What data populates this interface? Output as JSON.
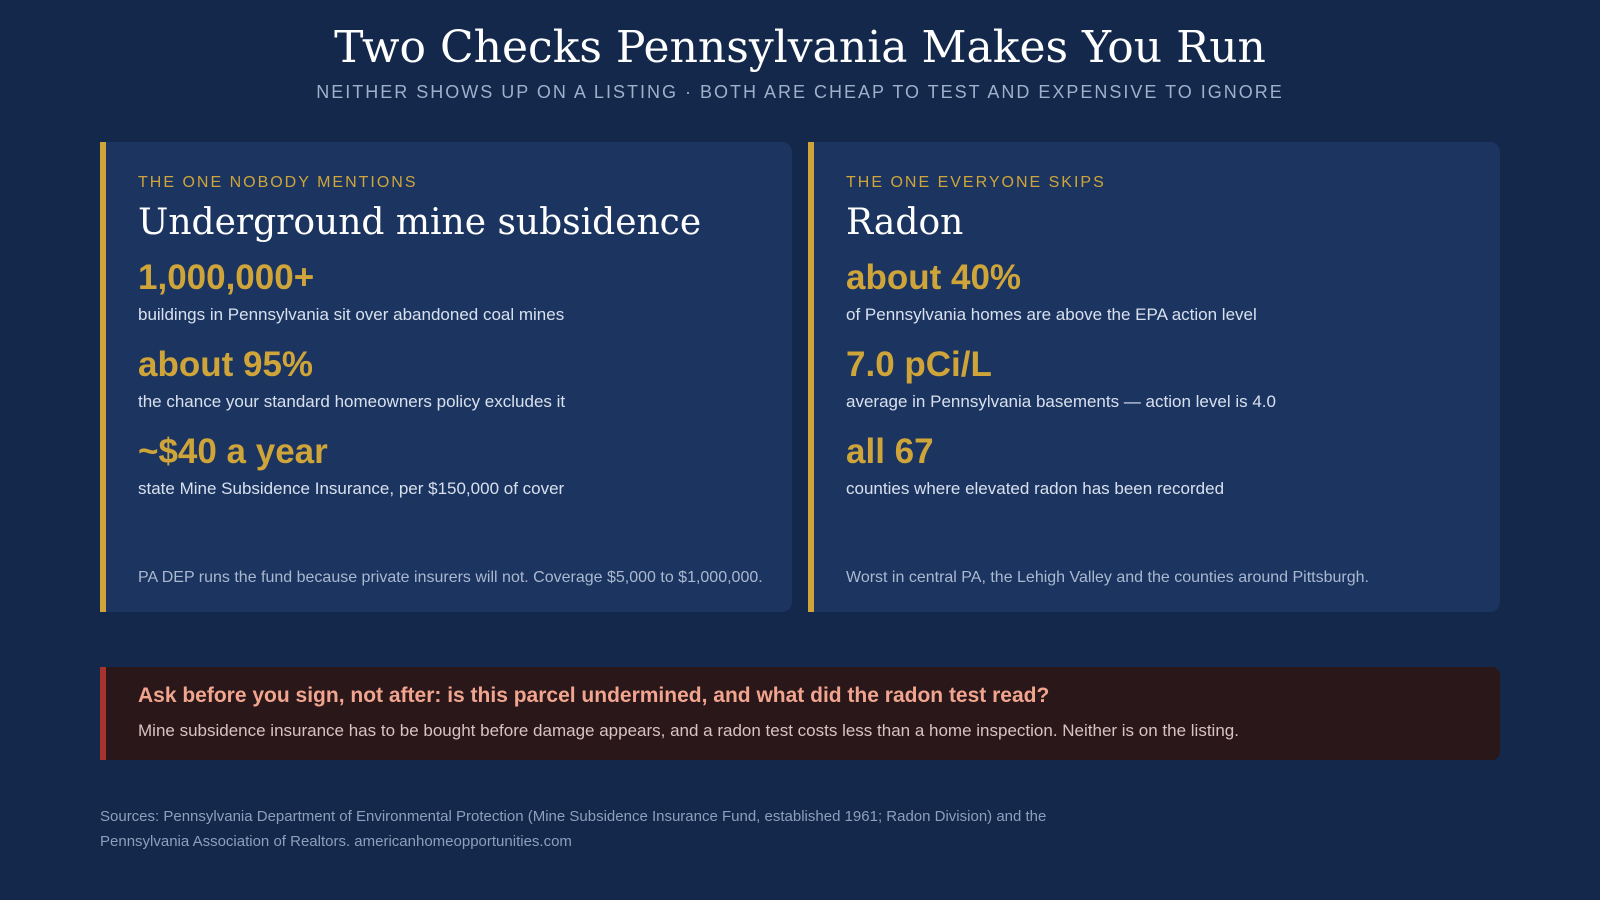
{
  "header": {
    "title": "Two Checks Pennsylvania Makes You Run",
    "subtitle": "NEITHER SHOWS UP ON A LISTING · BOTH ARE CHEAP TO TEST AND EXPENSIVE TO IGNORE"
  },
  "cards": [
    {
      "eyebrow": "THE ONE NOBODY MENTIONS",
      "heading": "Underground mine subsidence",
      "stats": [
        {
          "value": "1,000,000+",
          "desc": "buildings in Pennsylvania sit over abandoned coal mines"
        },
        {
          "value": "about 95%",
          "desc": "the chance your standard homeowners policy excludes it"
        },
        {
          "value": "~$40 a year",
          "desc": "state Mine Subsidence Insurance, per $150,000 of cover"
        }
      ],
      "note": "PA DEP runs the fund because private insurers will not. Coverage $5,000 to $1,000,000."
    },
    {
      "eyebrow": "THE ONE EVERYONE SKIPS",
      "heading": "Radon",
      "stats": [
        {
          "value": "about 40%",
          "desc": "of Pennsylvania homes are above the EPA action level"
        },
        {
          "value": "7.0 pCi/L",
          "desc": "average in Pennsylvania basements — action level is 4.0"
        },
        {
          "value": "all 67",
          "desc": "counties where elevated radon has been recorded"
        }
      ],
      "note": "Worst in central PA, the Lehigh Valley and the counties around Pittsburgh."
    }
  ],
  "warning": {
    "title": "Ask before you sign, not after: is this parcel undermined, and what did the radon test read?",
    "body": "Mine subsidence insurance has to be bought before damage appears, and a radon test costs less than a home inspection. Neither is on the listing."
  },
  "sources": {
    "line1": "Sources: Pennsylvania Department of Environmental Protection (Mine Subsidence Insurance Fund, established 1961; Radon Division) and the",
    "line2": "Pennsylvania Association of Realtors. americanhomeopportunities.com"
  },
  "colors": {
    "background": "#13284a",
    "card": "#1c3560",
    "accent": "#cfa53a",
    "warning_bar": "#a8322e",
    "warning_text": "#f1a58f"
  }
}
